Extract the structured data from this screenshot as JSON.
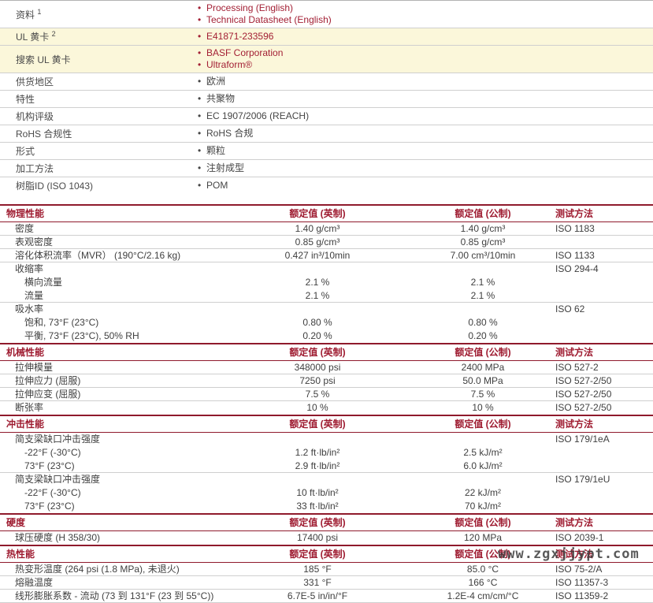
{
  "page": {
    "watermark": "www.zgxjjypt.com"
  },
  "colors": {
    "accent_red": "#a32035",
    "section_red": "#9e1b30",
    "border_red": "#8f1a2c",
    "highlight_yellow": "#fbf7da",
    "row_border_gray": "#cfcfcf",
    "text_gray": "#454545"
  },
  "info_table": {
    "rows": [
      {
        "label": "资料",
        "sup": "1",
        "highlight": false,
        "items": [
          {
            "text": "Processing (English)",
            "link": true
          },
          {
            "text": "Technical Datasheet (English)",
            "link": true
          }
        ]
      },
      {
        "label": "UL 黄卡",
        "sup": "2",
        "highlight": true,
        "items": [
          {
            "text": "E41871-233596",
            "link": true
          }
        ]
      },
      {
        "label": "搜索 UL 黄卡",
        "sup": "",
        "highlight": true,
        "items": [
          {
            "text": "BASF Corporation",
            "link": true
          },
          {
            "text": "Ultraform®",
            "link": true
          }
        ]
      },
      {
        "label": "供货地区",
        "sup": "",
        "highlight": false,
        "items": [
          {
            "text": "欧洲",
            "link": false
          }
        ]
      },
      {
        "label": "特性",
        "sup": "",
        "highlight": false,
        "items": [
          {
            "text": "共聚物",
            "link": false
          }
        ]
      },
      {
        "label": "机构评级",
        "sup": "",
        "highlight": false,
        "items": [
          {
            "text": "EC 1907/2006 (REACH)",
            "link": false
          }
        ]
      },
      {
        "label": "RoHS 合规性",
        "sup": "",
        "highlight": false,
        "items": [
          {
            "text": "RoHS 合规",
            "link": false
          }
        ]
      },
      {
        "label": "形式",
        "sup": "",
        "highlight": false,
        "items": [
          {
            "text": "颗粒",
            "link": false
          }
        ]
      },
      {
        "label": "加工方法",
        "sup": "",
        "highlight": false,
        "items": [
          {
            "text": "注射成型",
            "link": false
          }
        ]
      },
      {
        "label": "树脂ID (ISO 1043)",
        "sup": "",
        "highlight": false,
        "items": [
          {
            "text": "POM",
            "link": false
          }
        ]
      }
    ]
  },
  "column_headers": {
    "imperial": "额定值 (英制)",
    "metric": "额定值 (公制)",
    "method": "测试方法"
  },
  "sections": [
    {
      "title": "物理性能",
      "rows": [
        {
          "name": "密度",
          "indent": 0,
          "imperial": "1.40 g/cm³",
          "metric": "1.40 g/cm³",
          "method": "ISO 1183",
          "divider": true
        },
        {
          "name": "表观密度",
          "indent": 0,
          "imperial": "0.85 g/cm³",
          "metric": "0.85 g/cm³",
          "method": "",
          "divider": true
        },
        {
          "name": "溶化体积流率（MVR） (190°C/2.16 kg)",
          "indent": 0,
          "imperial": "0.427 in³/10min",
          "metric": "7.00 cm³/10min",
          "method": "ISO 1133",
          "divider": true
        },
        {
          "name": "收缩率",
          "indent": 0,
          "imperial": "",
          "metric": "",
          "method": "ISO 294-4",
          "divider": false
        },
        {
          "name": "横向流量",
          "indent": 1,
          "imperial": "2.1 %",
          "metric": "2.1 %",
          "method": "",
          "divider": false
        },
        {
          "name": "流量",
          "indent": 1,
          "imperial": "2.1 %",
          "metric": "2.1 %",
          "method": "",
          "divider": true
        },
        {
          "name": "吸水率",
          "indent": 0,
          "imperial": "",
          "metric": "",
          "method": "ISO 62",
          "divider": false
        },
        {
          "name": "饱和, 73°F (23°C)",
          "indent": 1,
          "imperial": "0.80 %",
          "metric": "0.80 %",
          "method": "",
          "divider": false
        },
        {
          "name": "平衡, 73°F (23°C), 50% RH",
          "indent": 1,
          "imperial": "0.20 %",
          "metric": "0.20 %",
          "method": "",
          "divider": false
        }
      ]
    },
    {
      "title": "机械性能",
      "rows": [
        {
          "name": "拉伸模量",
          "indent": 0,
          "imperial": "348000 psi",
          "metric": "2400 MPa",
          "method": "ISO 527-2",
          "divider": true
        },
        {
          "name": "拉伸应力 (屈服)",
          "indent": 0,
          "imperial": "7250 psi",
          "metric": "50.0 MPa",
          "method": "ISO 527-2/50",
          "divider": true
        },
        {
          "name": "拉伸应变 (屈服)",
          "indent": 0,
          "imperial": "7.5 %",
          "metric": "7.5 %",
          "method": "ISO 527-2/50",
          "divider": true
        },
        {
          "name": "断张率",
          "indent": 0,
          "imperial": "10 %",
          "metric": "10 %",
          "method": "ISO 527-2/50",
          "divider": false
        }
      ]
    },
    {
      "title": "冲击性能",
      "rows": [
        {
          "name": "简支梁缺口冲击强度",
          "indent": 0,
          "imperial": "",
          "metric": "",
          "method": "ISO 179/1eA",
          "divider": false
        },
        {
          "name": "-22°F (-30°C)",
          "indent": 1,
          "imperial": "1.2 ft·lb/in²",
          "metric": "2.5 kJ/m²",
          "method": "",
          "divider": false
        },
        {
          "name": "73°F (23°C)",
          "indent": 1,
          "imperial": "2.9 ft·lb/in²",
          "metric": "6.0 kJ/m²",
          "method": "",
          "divider": true
        },
        {
          "name": "简支梁缺口冲击强度",
          "indent": 0,
          "imperial": "",
          "metric": "",
          "method": "ISO 179/1eU",
          "divider": false
        },
        {
          "name": "-22°F (-30°C)",
          "indent": 1,
          "imperial": "10 ft·lb/in²",
          "metric": "22 kJ/m²",
          "method": "",
          "divider": false
        },
        {
          "name": "73°F (23°C)",
          "indent": 1,
          "imperial": "33 ft·lb/in²",
          "metric": "70 kJ/m²",
          "method": "",
          "divider": false
        }
      ]
    },
    {
      "title": "硬度",
      "rows": [
        {
          "name": "球压硬度 (H 358/30)",
          "indent": 0,
          "imperial": "17400 psi",
          "metric": "120 MPa",
          "method": "ISO 2039-1",
          "divider": false
        }
      ]
    },
    {
      "title": "热性能",
      "rows": [
        {
          "name": "热变形温度 (264 psi (1.8 MPa), 未退火)",
          "indent": 0,
          "imperial": "185 °F",
          "metric": "85.0 °C",
          "method": "ISO 75-2/A",
          "divider": true
        },
        {
          "name": "熔融温度",
          "indent": 0,
          "imperial": "331 °F",
          "metric": "166 °C",
          "method": "ISO 11357-3",
          "divider": true
        },
        {
          "name": "线形膨胀系数 - 流动 (73 到 131°F (23 到 55°C))",
          "indent": 0,
          "imperial": "6.7E-5 in/in/°F",
          "metric": "1.2E-4 cm/cm/°C",
          "method": "ISO 11359-2",
          "divider": true
        }
      ]
    }
  ]
}
